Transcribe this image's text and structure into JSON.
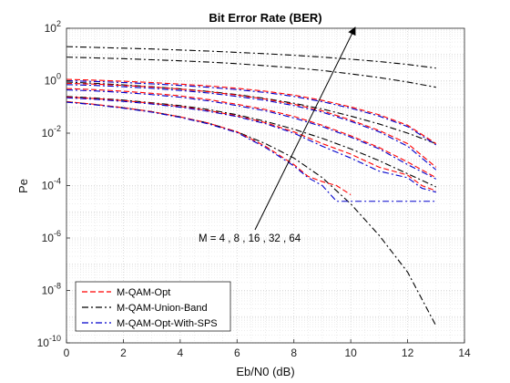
{
  "chart_data": {
    "type": "line",
    "title": "Bit Error Rate (BER)",
    "xlabel": "Eb/N0 (dB)",
    "ylabel": "Pe",
    "xlim": [
      0,
      14
    ],
    "ylim_log10": [
      -10,
      2
    ],
    "yscale": "log",
    "xticks": [
      "0",
      "2",
      "4",
      "6",
      "8",
      "10",
      "12",
      "14"
    ],
    "yticks": [
      {
        "base": "10",
        "exp": "2"
      },
      {
        "base": "10",
        "exp": "0"
      },
      {
        "base": "10",
        "exp": "-2"
      },
      {
        "base": "10",
        "exp": "-4"
      },
      {
        "base": "10",
        "exp": "-6"
      },
      {
        "base": "10",
        "exp": "-8"
      },
      {
        "base": "10",
        "exp": "-10"
      }
    ],
    "grid": true,
    "minor_grid": true,
    "legend_position": "bottom-left",
    "legend": [
      {
        "name": "M-QAM-Opt",
        "color": "#ff0000",
        "style": "dashed"
      },
      {
        "name": "M-QAM-Union-Band",
        "color": "#000000",
        "style": "dashdot"
      },
      {
        "name": "M-QAM-Opt-With-SPS",
        "color": "#0000cc",
        "style": "dashdot"
      }
    ],
    "annotation": "M = 4 , 8 , 16 , 32 , 64",
    "series": [
      {
        "group": "M-QAM-Union-Band",
        "M": 4,
        "color": "#000000",
        "style": "dashdot",
        "x": [
          0,
          1,
          2,
          3,
          4,
          5,
          6,
          7,
          8,
          9,
          10,
          11,
          12,
          13
        ],
        "log10y": [
          -0.8,
          -0.91,
          -1.03,
          -1.18,
          -1.38,
          -1.62,
          -1.95,
          -2.4,
          -2.95,
          -3.7,
          -4.7,
          -5.9,
          -7.3,
          -9.35
        ]
      },
      {
        "group": "M-QAM-Union-Band",
        "M": 8,
        "color": "#000000",
        "style": "dashdot",
        "x": [
          0,
          1,
          2,
          3,
          4,
          5,
          6,
          7,
          8,
          9,
          10,
          11,
          12,
          13
        ],
        "log10y": [
          -0.6,
          -0.66,
          -0.74,
          -0.84,
          -0.95,
          -1.1,
          -1.3,
          -1.55,
          -1.85,
          -2.2,
          -2.6,
          -3.05,
          -3.55,
          -4.05
        ]
      },
      {
        "group": "M-QAM-Union-Band",
        "M": 16,
        "color": "#000000",
        "style": "dashdot",
        "x": [
          0,
          1,
          2,
          3,
          4,
          5,
          6,
          7,
          8,
          9,
          10,
          11,
          12,
          13
        ],
        "log10y": [
          -0.05,
          -0.1,
          -0.16,
          -0.23,
          -0.31,
          -0.41,
          -0.53,
          -0.68,
          -0.86,
          -1.08,
          -1.35,
          -1.65,
          -2.0,
          -2.4
        ]
      },
      {
        "group": "M-QAM-Union-Band",
        "M": 32,
        "color": "#000000",
        "style": "dashdot",
        "x": [
          0,
          1,
          2,
          3,
          4,
          5,
          6,
          7,
          8,
          9,
          10,
          11,
          12,
          13
        ],
        "log10y": [
          0.9,
          0.87,
          0.84,
          0.8,
          0.76,
          0.71,
          0.65,
          0.57,
          0.49,
          0.39,
          0.26,
          0.12,
          -0.05,
          -0.25
        ]
      },
      {
        "group": "M-QAM-Union-Band",
        "M": 64,
        "color": "#000000",
        "style": "dashdot",
        "x": [
          0,
          1,
          2,
          3,
          4,
          5,
          6,
          7,
          8,
          9,
          10,
          11,
          12,
          13
        ],
        "log10y": [
          1.3,
          1.27,
          1.24,
          1.21,
          1.17,
          1.13,
          1.08,
          1.03,
          0.97,
          0.9,
          0.82,
          0.73,
          0.62,
          0.48
        ]
      },
      {
        "group": "M-QAM-Opt",
        "M": 4,
        "color": "#ff0000",
        "style": "dashed",
        "x": [
          0,
          1,
          2,
          3,
          4,
          5,
          6,
          7,
          7.5,
          8,
          8.5,
          9,
          9.5,
          10
        ],
        "log10y": [
          -0.8,
          -0.9,
          -1.03,
          -1.18,
          -1.38,
          -1.62,
          -1.95,
          -2.5,
          -2.85,
          -3.2,
          -3.65,
          -3.85,
          -4.0,
          -4.35
        ]
      },
      {
        "group": "M-QAM-Opt",
        "M": 8,
        "color": "#ff0000",
        "style": "dashed",
        "x": [
          0,
          1,
          2,
          3,
          4,
          5,
          6,
          7,
          8,
          9,
          10,
          11,
          12,
          12.5,
          13
        ],
        "log10y": [
          -0.62,
          -0.68,
          -0.76,
          -0.86,
          -0.98,
          -1.14,
          -1.34,
          -1.6,
          -1.95,
          -2.4,
          -2.8,
          -3.3,
          -3.6,
          -4.0,
          -4.2
        ]
      },
      {
        "group": "M-QAM-Opt",
        "M": 16,
        "color": "#ff0000",
        "style": "dashed",
        "x": [
          0,
          1,
          2,
          3,
          4,
          5,
          6,
          7,
          8,
          9,
          10,
          11,
          12,
          13
        ],
        "log10y": [
          -0.3,
          -0.34,
          -0.4,
          -0.48,
          -0.58,
          -0.72,
          -0.9,
          -1.1,
          -1.36,
          -1.7,
          -2.1,
          -2.55,
          -3.1,
          -3.7
        ]
      },
      {
        "group": "M-QAM-Opt",
        "M": 32,
        "color": "#ff0000",
        "style": "dashed",
        "x": [
          0,
          1,
          2,
          3,
          4,
          5,
          6,
          7,
          8,
          9,
          10,
          11,
          12,
          13
        ],
        "log10y": [
          -0.1,
          -0.13,
          -0.18,
          -0.24,
          -0.32,
          -0.42,
          -0.55,
          -0.7,
          -0.9,
          -1.15,
          -1.5,
          -1.9,
          -2.4,
          -3.3
        ]
      },
      {
        "group": "M-QAM-Opt",
        "M": 64,
        "color": "#ff0000",
        "style": "dashed",
        "x": [
          0,
          1,
          2,
          3,
          4,
          5,
          6,
          7,
          8,
          9,
          10,
          11,
          12,
          13
        ],
        "log10y": [
          0.05,
          0.02,
          -0.02,
          -0.07,
          -0.13,
          -0.2,
          -0.29,
          -0.4,
          -0.55,
          -0.75,
          -1.0,
          -1.3,
          -1.7,
          -2.4
        ]
      },
      {
        "group": "M-QAM-Opt-With-SPS",
        "M": 4,
        "color": "#0000cc",
        "style": "dashdot",
        "x": [
          0,
          1,
          2,
          3,
          4,
          5,
          6,
          7,
          7.5,
          8,
          8.5,
          9,
          9.5,
          13
        ],
        "log10y": [
          -0.82,
          -0.92,
          -1.05,
          -1.2,
          -1.4,
          -1.65,
          -1.98,
          -2.55,
          -2.9,
          -3.25,
          -3.7,
          -4.0,
          -4.6,
          -4.6
        ]
      },
      {
        "group": "M-QAM-Opt-With-SPS",
        "M": 8,
        "color": "#0000cc",
        "style": "dashdot",
        "x": [
          0,
          1,
          2,
          3,
          4,
          5,
          6,
          7,
          8,
          9,
          10,
          11,
          12,
          12.5,
          13
        ],
        "log10y": [
          -0.65,
          -0.71,
          -0.79,
          -0.89,
          -1.01,
          -1.17,
          -1.37,
          -1.64,
          -2.0,
          -2.5,
          -2.95,
          -3.45,
          -3.7,
          -4.1,
          -4.25
        ]
      },
      {
        "group": "M-QAM-Opt-With-SPS",
        "M": 16,
        "color": "#0000cc",
        "style": "dashdot",
        "x": [
          0,
          1,
          2,
          3,
          4,
          5,
          6,
          7,
          8,
          9,
          10,
          11,
          12,
          13
        ],
        "log10y": [
          -0.35,
          -0.39,
          -0.45,
          -0.53,
          -0.63,
          -0.77,
          -0.95,
          -1.15,
          -1.42,
          -1.75,
          -2.15,
          -2.6,
          -3.2,
          -3.75
        ]
      },
      {
        "group": "M-QAM-Opt-With-SPS",
        "M": 32,
        "color": "#0000cc",
        "style": "dashdot",
        "x": [
          0,
          1,
          2,
          3,
          4,
          5,
          6,
          7,
          8,
          9,
          10,
          11,
          12,
          13
        ],
        "log10y": [
          -0.15,
          -0.18,
          -0.23,
          -0.29,
          -0.37,
          -0.47,
          -0.6,
          -0.75,
          -0.95,
          -1.2,
          -1.55,
          -1.95,
          -2.5,
          -3.4
        ]
      },
      {
        "group": "M-QAM-Opt-With-SPS",
        "M": 64,
        "color": "#0000cc",
        "style": "dashdot",
        "x": [
          0,
          1,
          2,
          3,
          4,
          5,
          6,
          7,
          8,
          9,
          10,
          11,
          12,
          13
        ],
        "log10y": [
          0.0,
          -0.03,
          -0.07,
          -0.12,
          -0.18,
          -0.25,
          -0.34,
          -0.45,
          -0.6,
          -0.8,
          -1.05,
          -1.35,
          -1.75,
          -2.45
        ]
      }
    ]
  }
}
